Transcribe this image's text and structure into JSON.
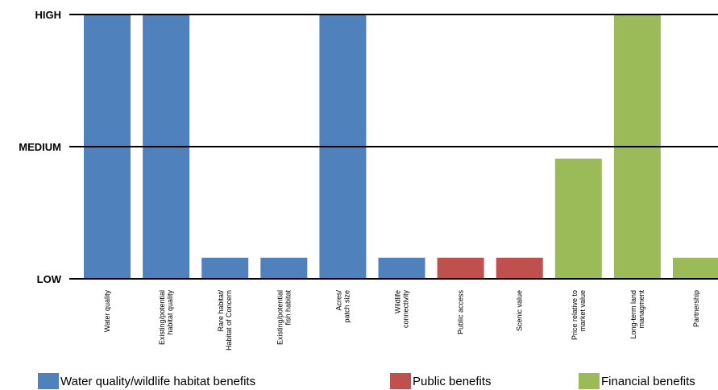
{
  "chart_data": {
    "type": "bar",
    "y_scale": {
      "levels": [
        "LOW",
        "MEDIUM",
        "HIGH"
      ],
      "values": [
        0,
        1,
        2
      ],
      "ylim": [
        0,
        2
      ]
    },
    "categories": [
      {
        "label": [
          "Water quality"
        ],
        "value": 2,
        "group": 0
      },
      {
        "label": [
          "Existing/potential",
          "habitat quality"
        ],
        "value": 2,
        "group": 0
      },
      {
        "label": [
          "Rare habitat/",
          "Habitat of Concern"
        ],
        "value": 0.16,
        "group": 0
      },
      {
        "label": [
          "Existing/potential",
          "fish habitat"
        ],
        "value": 0.16,
        "group": 0
      },
      {
        "label": [
          "Acres/",
          "patch size"
        ],
        "value": 2,
        "group": 0
      },
      {
        "label": [
          "Wildlife",
          "connectivity"
        ],
        "value": 0.16,
        "group": 0
      },
      {
        "label": [
          "Public access"
        ],
        "value": 0.16,
        "group": 1
      },
      {
        "label": [
          "Scenic value"
        ],
        "value": 0.16,
        "group": 1
      },
      {
        "label": [
          "Price relative to",
          "market value"
        ],
        "value": 0.91,
        "group": 2
      },
      {
        "label": [
          "Long-term land",
          "managment"
        ],
        "value": 2,
        "group": 2
      },
      {
        "label": [
          "Partnership"
        ],
        "value": 0.16,
        "group": 2
      }
    ],
    "legend": [
      {
        "name": "Water quality/wildlife habitat benefits",
        "color": "#4f81bd"
      },
      {
        "name": "Public benefits",
        "color": "#c0504d"
      },
      {
        "name": "Financial benefits",
        "color": "#9bbb59"
      }
    ],
    "grid": true,
    "legend_position": "bottom"
  }
}
